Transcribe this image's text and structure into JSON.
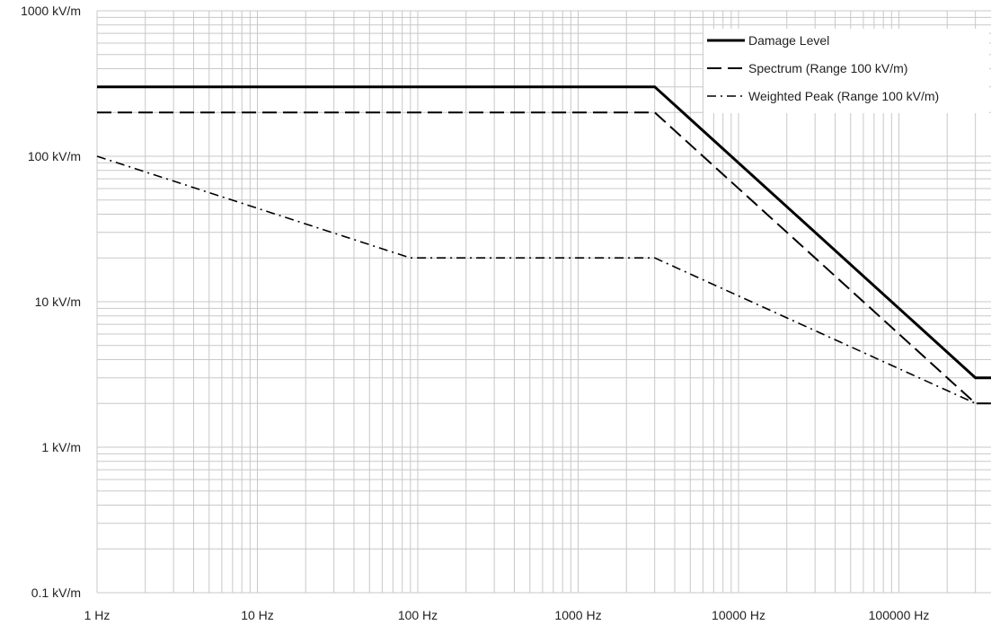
{
  "chart_data": {
    "type": "line",
    "title": "",
    "xlabel": "",
    "ylabel": "",
    "x_scale": "log",
    "y_scale": "log",
    "xlim": [
      1,
      300000
    ],
    "ylim": [
      0.1,
      1000
    ],
    "grid": true,
    "legend_position": "top-right",
    "x_ticks": [
      {
        "value": 1,
        "label": "1 Hz"
      },
      {
        "value": 10,
        "label": "10 Hz"
      },
      {
        "value": 100,
        "label": "100 Hz"
      },
      {
        "value": 1000,
        "label": "1000 Hz"
      },
      {
        "value": 10000,
        "label": "10000 Hz"
      },
      {
        "value": 100000,
        "label": "100000 Hz"
      }
    ],
    "y_ticks": [
      {
        "value": 0.1,
        "label": "0.1 kV/m"
      },
      {
        "value": 1,
        "label": "1 kV/m"
      },
      {
        "value": 10,
        "label": "10 kV/m"
      },
      {
        "value": 100,
        "label": "100 kV/m"
      },
      {
        "value": 1000,
        "label": "1000 kV/m"
      }
    ],
    "series": [
      {
        "name": "Damage Level",
        "style": "solid",
        "points": [
          [
            1,
            300
          ],
          [
            3000,
            300
          ],
          [
            300000,
            3
          ],
          [
            400000,
            3
          ]
        ]
      },
      {
        "name": "Spectrum (Range 100 kV/m)",
        "style": "dashed",
        "points": [
          [
            1,
            200
          ],
          [
            3000,
            200
          ],
          [
            300000,
            2
          ],
          [
            400000,
            2
          ]
        ]
      },
      {
        "name": "Weighted Peak (Range 100 kV/m)",
        "style": "dashdot",
        "points": [
          [
            1,
            100
          ],
          [
            90,
            20
          ],
          [
            3000,
            20
          ],
          [
            300000,
            2
          ],
          [
            400000,
            2
          ]
        ]
      }
    ],
    "colors": {
      "line": "#000000",
      "grid": "#c8c8c8",
      "legend_bg": "#ffffff"
    }
  }
}
